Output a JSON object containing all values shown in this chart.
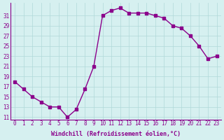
{
  "x": [
    0,
    1,
    2,
    3,
    4,
    5,
    6,
    7,
    8,
    9,
    10,
    11,
    12,
    13,
    14,
    15,
    16,
    17,
    18,
    19,
    20,
    21,
    22,
    23
  ],
  "y": [
    18,
    16.5,
    15,
    14,
    13,
    13,
    11,
    12.5,
    16.5,
    21,
    31,
    32,
    32.5,
    31.5,
    31.5,
    31.5,
    31,
    30.5,
    29,
    28.5,
    27,
    25,
    22.5,
    23
  ],
  "line_color": "#8B008B",
  "marker_color": "#8B008B",
  "bg_color": "#d6f0f0",
  "grid_color": "#b0d8d8",
  "xlabel": "Windchill (Refroidissement éolien,°C)",
  "xlabel_color": "#8B008B",
  "yticks": [
    11,
    13,
    15,
    17,
    19,
    21,
    23,
    25,
    27,
    29,
    31
  ],
  "xticks": [
    0,
    1,
    2,
    3,
    4,
    5,
    6,
    7,
    8,
    9,
    10,
    11,
    12,
    13,
    14,
    15,
    16,
    17,
    18,
    19,
    20,
    21,
    22,
    23
  ],
  "ylim": [
    10.5,
    33.5
  ],
  "xlim": [
    -0.5,
    23.5
  ]
}
